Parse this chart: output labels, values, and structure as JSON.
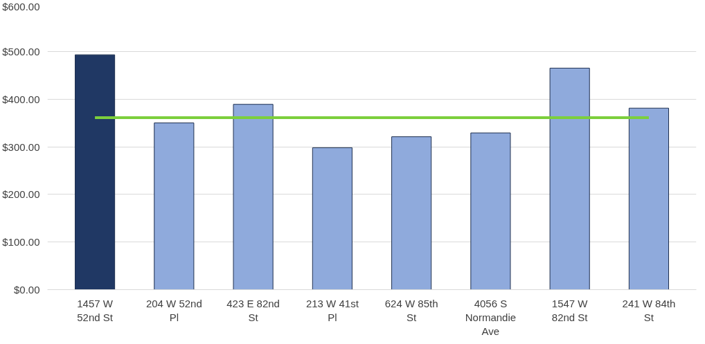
{
  "chart_data": {
    "type": "bar",
    "categories": [
      "1457 W 52nd St",
      "204 W 52nd Pl",
      "423 E 82nd St",
      "213 W 41st Pl",
      "624 W 85th St",
      "4056 S Normandie Ave",
      "1547 W 82nd St",
      "241 W 84th St"
    ],
    "series": [
      {
        "values": [
          493,
          350,
          389,
          298,
          321,
          329,
          465,
          381
        ],
        "colors": [
          "#203864",
          "#8faadc",
          "#8faadc",
          "#8faadc",
          "#8faadc",
          "#8faadc",
          "#8faadc",
          "#8faadc"
        ]
      },
      {
        "type": "line",
        "color": "#7ccf3c",
        "values": [
          361,
          361,
          361,
          361,
          361,
          361,
          361,
          361
        ]
      }
    ],
    "ylim": [
      0,
      600
    ],
    "yticks": [
      {
        "value": 0,
        "label": "$0.00"
      },
      {
        "value": 100,
        "label": "$100.00"
      },
      {
        "value": 200,
        "label": "$200.00"
      },
      {
        "value": 300,
        "label": "$300.00"
      },
      {
        "value": 400,
        "label": "$400.00"
      },
      {
        "value": 500,
        "label": "$500.00"
      },
      {
        "value": 600,
        "label": "$600.00"
      }
    ],
    "grid": "y"
  }
}
